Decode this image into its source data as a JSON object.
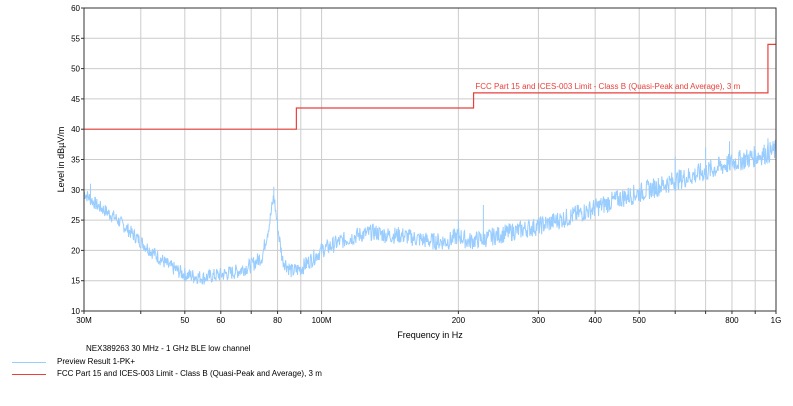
{
  "chart_data": {
    "type": "line",
    "xlabel": "Frequency in Hz",
    "ylabel": "Level in dBµV/m",
    "xscale": "log",
    "xlim": [
      30000000,
      1000000000
    ],
    "ylim": [
      10,
      60
    ],
    "grid": true,
    "x_ticks": [
      {
        "value": 30000000,
        "label": "30M"
      },
      {
        "value": 50000000,
        "label": "50"
      },
      {
        "value": 60000000,
        "label": "60"
      },
      {
        "value": 80000000,
        "label": "80"
      },
      {
        "value": 100000000,
        "label": "100M"
      },
      {
        "value": 200000000,
        "label": "200"
      },
      {
        "value": 300000000,
        "label": "300"
      },
      {
        "value": 400000000,
        "label": "400"
      },
      {
        "value": 500000000,
        "label": "500"
      },
      {
        "value": 800000000,
        "label": "800"
      },
      {
        "value": 1000000000,
        "label": "1G"
      }
    ],
    "x_minor_ticks": [
      40000000,
      70000000,
      90000000,
      600000000,
      700000000,
      900000000
    ],
    "y_ticks": [
      10,
      15,
      20,
      25,
      30,
      35,
      40,
      45,
      50,
      55,
      60
    ],
    "annotation": "FCC Part 15 and ICES-003 Limit - Class B (Quasi-Peak and Average), 3 m",
    "series": [
      {
        "name": "Preview Result 1-PK+",
        "color": "#99ccff",
        "ripple": 1.8,
        "points": [
          [
            30000000,
            29.5
          ],
          [
            32000000,
            27.5
          ],
          [
            35000000,
            25.5
          ],
          [
            38000000,
            23.0
          ],
          [
            42000000,
            20.0
          ],
          [
            46000000,
            17.5
          ],
          [
            50000000,
            16.0
          ],
          [
            55000000,
            15.5
          ],
          [
            60000000,
            16.0
          ],
          [
            65000000,
            16.5
          ],
          [
            70000000,
            17.5
          ],
          [
            74000000,
            19.0
          ],
          [
            77000000,
            25.0
          ],
          [
            78500000,
            29.0
          ],
          [
            80000000,
            24.0
          ],
          [
            82000000,
            18.5
          ],
          [
            86000000,
            16.5
          ],
          [
            90000000,
            17.0
          ],
          [
            95000000,
            18.5
          ],
          [
            100000000,
            20.0
          ],
          [
            110000000,
            21.5
          ],
          [
            120000000,
            22.5
          ],
          [
            130000000,
            23.0
          ],
          [
            140000000,
            22.5
          ],
          [
            150000000,
            22.5
          ],
          [
            160000000,
            22.0
          ],
          [
            175000000,
            21.5
          ],
          [
            190000000,
            21.5
          ],
          [
            200000000,
            22.5
          ],
          [
            210000000,
            21.5
          ],
          [
            230000000,
            22.0
          ],
          [
            260000000,
            23.0
          ],
          [
            300000000,
            24.0
          ],
          [
            350000000,
            25.5
          ],
          [
            400000000,
            27.0
          ],
          [
            450000000,
            28.5
          ],
          [
            500000000,
            29.5
          ],
          [
            600000000,
            31.5
          ],
          [
            700000000,
            33.0
          ],
          [
            800000000,
            34.5
          ],
          [
            900000000,
            35.5
          ],
          [
            1000000000,
            36.5
          ]
        ],
        "spikes": [
          [
            31000000,
            31.0
          ],
          [
            78500000,
            30.5
          ],
          [
            200000000,
            25.0
          ],
          [
            227000000,
            27.5
          ],
          [
            600000000,
            35.5
          ],
          [
            700000000,
            37.0
          ],
          [
            790000000,
            38.0
          ],
          [
            960000000,
            38.5
          ]
        ]
      },
      {
        "name": "FCC Part 15 and ICES-003 Limit - Class B (Quasi-Peak and Average), 3 m",
        "color": "#e8413c",
        "step": true,
        "points": [
          [
            30000000,
            40
          ],
          [
            88000000,
            40
          ],
          [
            88000000,
            43.5
          ],
          [
            216000000,
            43.5
          ],
          [
            216000000,
            46
          ],
          [
            960000000,
            46
          ],
          [
            960000000,
            54
          ],
          [
            1000000000,
            54
          ]
        ]
      }
    ]
  },
  "legend": {
    "caption": "NEX389263 30 MHz - 1 GHz BLE low channel",
    "items": [
      {
        "label": "Preview Result 1-PK+",
        "color": "#99ccff"
      },
      {
        "label": "FCC Part 15 and ICES-003 Limit - Class B (Quasi-Peak and Average), 3 m",
        "color": "#e8413c"
      }
    ]
  }
}
